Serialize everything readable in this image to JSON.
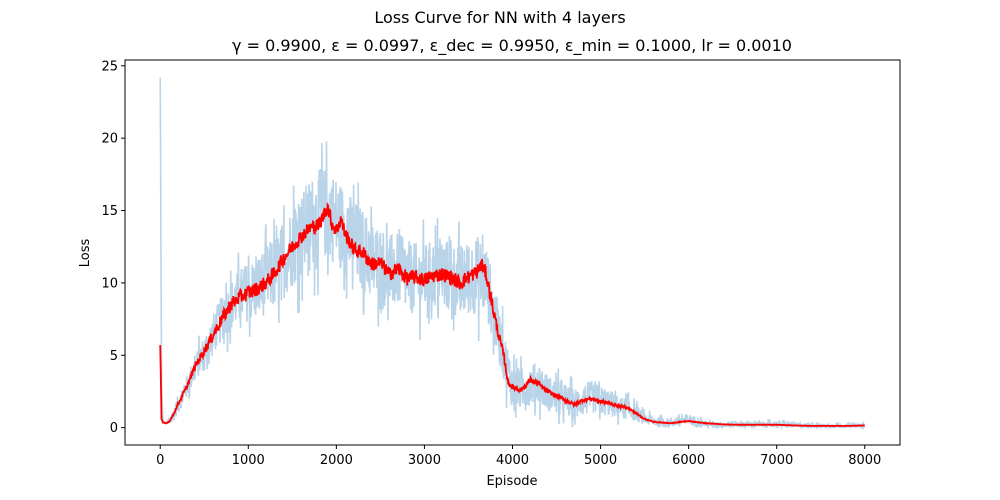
{
  "chart_data": {
    "type": "line",
    "suptitle": "Loss Curve for NN with 4 layers",
    "title": "γ = 0.9900, ε = 0.0997, ε_dec = 0.9950, ε_min = 0.1000, lr = 0.0010",
    "xlabel": "Episode",
    "ylabel": "Loss",
    "xlim": [
      -400,
      8400
    ],
    "ylim": [
      -1.2,
      25.4
    ],
    "xticks": [
      0,
      1000,
      2000,
      3000,
      4000,
      5000,
      6000,
      7000,
      8000
    ],
    "yticks": [
      0,
      5,
      10,
      15,
      20,
      25
    ],
    "grid": false,
    "legend": "none",
    "series": [
      {
        "role": "raw",
        "color": "#b9d4e8",
        "x": [
          0,
          15,
          30,
          60,
          100,
          150,
          200,
          300,
          400,
          500,
          600,
          700,
          800,
          900,
          1000,
          1100,
          1200,
          1300,
          1400,
          1500,
          1600,
          1700,
          1800,
          1900,
          2000,
          2100,
          2200,
          2300,
          2400,
          2500,
          2600,
          2700,
          2800,
          2900,
          3000,
          3100,
          3200,
          3300,
          3400,
          3500,
          3600,
          3700,
          3800,
          3900,
          4000,
          4100,
          4200,
          4300,
          4400,
          4500,
          4600,
          4700,
          4800,
          4900,
          5000,
          5100,
          5200,
          5300,
          5400,
          5500,
          5600,
          5700,
          5800,
          5900,
          6000,
          6200,
          6400,
          6600,
          6800,
          7000,
          7200,
          7400,
          7600,
          7800,
          8000
        ],
        "values": [
          24.2,
          3.0,
          0.5,
          0.3,
          0.4,
          0.9,
          1.6,
          2.8,
          4.2,
          5.2,
          6.4,
          7.6,
          8.4,
          9.1,
          9.4,
          9.6,
          10.2,
          10.7,
          11.6,
          12.6,
          13.2,
          14.2,
          14.6,
          14.9,
          14.3,
          13.6,
          12.8,
          12.3,
          11.5,
          11.3,
          10.7,
          10.9,
          10.4,
          10.3,
          10.3,
          10.6,
          10.8,
          10.3,
          10.1,
          10.3,
          10.6,
          10.2,
          7.6,
          5.0,
          2.9,
          2.6,
          3.0,
          3.1,
          2.4,
          2.1,
          1.9,
          1.6,
          1.9,
          2.1,
          1.9,
          1.7,
          1.4,
          1.3,
          1.0,
          0.6,
          0.45,
          0.35,
          0.35,
          0.5,
          0.55,
          0.25,
          0.2,
          0.25,
          0.2,
          0.25,
          0.15,
          0.15,
          0.1,
          0.1,
          0.15
        ],
        "noise": [
          0,
          0,
          0,
          0,
          0.3,
          0.6,
          0.8,
          1.0,
          1.2,
          1.5,
          1.8,
          2.0,
          2.2,
          2.4,
          2.6,
          2.8,
          3.0,
          3.2,
          3.4,
          3.6,
          3.8,
          3.9,
          4.0,
          4.0,
          3.9,
          3.8,
          3.7,
          3.6,
          3.5,
          3.4,
          3.3,
          3.2,
          3.2,
          3.1,
          3.0,
          3.0,
          3.1,
          3.2,
          3.2,
          3.3,
          3.4,
          3.2,
          2.6,
          2.2,
          2.0,
          1.8,
          1.8,
          1.8,
          1.6,
          1.5,
          1.4,
          1.4,
          1.4,
          1.4,
          1.3,
          1.2,
          1.0,
          0.9,
          0.7,
          0.5,
          0.45,
          0.4,
          0.4,
          0.5,
          0.5,
          0.3,
          0.3,
          0.3,
          0.25,
          0.3,
          0.25,
          0.2,
          0.2,
          0.2,
          0.2
        ]
      },
      {
        "role": "smoothed",
        "color": "#ff0000",
        "x": [
          0,
          15,
          30,
          60,
          100,
          150,
          200,
          300,
          400,
          500,
          600,
          700,
          800,
          900,
          1000,
          1100,
          1200,
          1300,
          1400,
          1500,
          1600,
          1700,
          1800,
          1850,
          1900,
          1950,
          2000,
          2050,
          2100,
          2200,
          2300,
          2400,
          2500,
          2600,
          2700,
          2800,
          2900,
          3000,
          3100,
          3200,
          3300,
          3400,
          3500,
          3600,
          3650,
          3700,
          3750,
          3800,
          3850,
          3900,
          3950,
          4000,
          4100,
          4200,
          4300,
          4400,
          4500,
          4600,
          4700,
          4800,
          4900,
          5000,
          5100,
          5200,
          5300,
          5400,
          5500,
          5600,
          5700,
          5800,
          5900,
          6000,
          6200,
          6400,
          6600,
          6800,
          7000,
          7200,
          7400,
          7600,
          7800,
          8000
        ],
        "values": [
          5.7,
          0.6,
          0.35,
          0.3,
          0.4,
          0.9,
          1.6,
          2.8,
          4.3,
          5.3,
          6.4,
          7.5,
          8.5,
          9.0,
          9.3,
          9.6,
          10.0,
          10.7,
          11.7,
          12.5,
          13.2,
          13.8,
          14.0,
          14.6,
          15.3,
          14.1,
          13.6,
          14.4,
          13.4,
          12.3,
          12.1,
          11.3,
          11.4,
          10.6,
          11.0,
          10.3,
          10.4,
          10.2,
          10.5,
          10.6,
          10.4,
          10.0,
          10.4,
          10.8,
          11.3,
          10.6,
          9.1,
          7.6,
          6.2,
          5.0,
          3.1,
          2.8,
          2.6,
          3.3,
          3.0,
          2.5,
          2.2,
          1.9,
          1.6,
          1.9,
          2.0,
          1.8,
          1.7,
          1.5,
          1.4,
          1.0,
          0.6,
          0.4,
          0.35,
          0.3,
          0.4,
          0.45,
          0.3,
          0.22,
          0.2,
          0.2,
          0.2,
          0.15,
          0.12,
          0.12,
          0.12,
          0.15
        ]
      }
    ]
  }
}
